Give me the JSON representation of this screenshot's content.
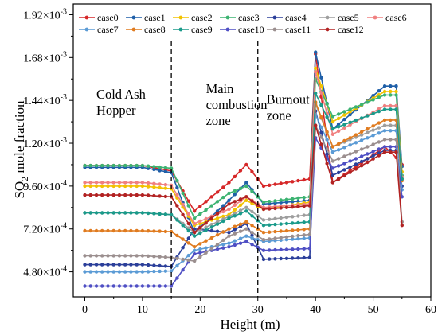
{
  "chart_data": {
    "type": "line",
    "title": "",
    "xlabel": "Height (m)",
    "ylabel": {
      "main": "SO",
      "sub": "2",
      "rest": " mole fraction"
    },
    "xlim": [
      -2,
      60
    ],
    "ylim": [
      0.00034,
      0.00198
    ],
    "xticks": [
      0,
      10,
      20,
      30,
      40,
      50,
      60
    ],
    "yticks": [
      {
        "v": 0.00048,
        "m": "4.80",
        "e": "-4"
      },
      {
        "v": 0.00072,
        "m": "7.20",
        "e": "-4"
      },
      {
        "v": 0.00096,
        "m": "9.60",
        "e": "-4"
      },
      {
        "v": 0.0012,
        "m": "1.20",
        "e": "-3"
      },
      {
        "v": 0.00144,
        "m": "1.44",
        "e": "-3"
      },
      {
        "v": 0.00168,
        "m": "1.68",
        "e": "-3"
      },
      {
        "v": 0.00192,
        "m": "1.92",
        "e": "-3"
      }
    ],
    "grid": false,
    "legend_position": "top",
    "zone_dividers": [
      15,
      30
    ],
    "annotations": [
      {
        "lines": [
          "Cold Ash",
          "Hopper"
        ],
        "x": 2,
        "y": 0.00145
      },
      {
        "lines": [
          "Main",
          "combustion",
          "zone"
        ],
        "x": 21,
        "y": 0.00148
      },
      {
        "lines": [
          "Burnout",
          "zone"
        ],
        "x": 31.5,
        "y": 0.00142
      }
    ],
    "series": [
      {
        "name": "case0",
        "color": "#d62728",
        "values": [
          0.001075,
          0.001075,
          0.001045,
          0.00082,
          0.00098,
          0.00108,
          0.00096,
          0.001,
          0.0017,
          0.00098,
          0.00118,
          0.00112,
          0.00108
        ]
      },
      {
        "name": "case1",
        "color": "#1f5fa8",
        "values": [
          0.001065,
          0.001065,
          0.001035,
          0.0007,
          0.00088,
          0.00098,
          0.00086,
          0.00088,
          0.00171,
          0.00128,
          0.00152,
          0.00152,
          0.00107
        ]
      },
      {
        "name": "case2",
        "color": "#f2c200",
        "values": [
          0.00096,
          0.00096,
          0.000945,
          0.00074,
          0.0008,
          0.00088,
          0.00083,
          0.00087,
          0.00162,
          0.00132,
          0.00149,
          0.00149,
          0.00104
        ]
      },
      {
        "name": "case3",
        "color": "#3cb371",
        "values": [
          0.001075,
          0.001075,
          0.00106,
          0.00078,
          0.00092,
          0.00096,
          0.00087,
          0.0009,
          0.00156,
          0.00135,
          0.00147,
          0.00147,
          0.00102
        ]
      },
      {
        "name": "case4",
        "color": "#2b3f9a",
        "values": [
          0.00052,
          0.00052,
          0.00051,
          0.00072,
          0.0007,
          0.00075,
          0.00055,
          0.00056,
          0.00138,
          0.00102,
          0.00116,
          0.00116,
          0.00096
        ]
      },
      {
        "name": "case5",
        "color": "#9e9e9e",
        "values": [
          0.00081,
          0.00081,
          0.0008,
          0.0007,
          0.00079,
          0.00084,
          0.00077,
          0.0008,
          0.00142,
          0.00118,
          0.0013,
          0.0013,
          0.001
        ]
      },
      {
        "name": "case6",
        "color": "#f08080",
        "values": [
          0.00098,
          0.00098,
          0.000965,
          0.00075,
          0.00083,
          0.0009,
          0.00084,
          0.00086,
          0.0016,
          0.00125,
          0.00141,
          0.00141,
          0.00101
        ]
      },
      {
        "name": "case7",
        "color": "#5b9bd5",
        "values": [
          0.00048,
          0.00048,
          0.000485,
          0.0006,
          0.00064,
          0.00068,
          0.00065,
          0.00067,
          0.00136,
          0.00115,
          0.00127,
          0.00127,
          0.00094
        ]
      },
      {
        "name": "case8",
        "color": "#e07b1f",
        "values": [
          0.00071,
          0.00071,
          0.000705,
          0.00062,
          0.00072,
          0.00076,
          0.0007,
          0.00072,
          0.00143,
          0.00118,
          0.00133,
          0.00133,
          0.00099
        ]
      },
      {
        "name": "case9",
        "color": "#1a9a8a",
        "values": [
          0.00081,
          0.00081,
          0.0008,
          0.00068,
          0.00078,
          0.00082,
          0.00074,
          0.00076,
          0.00148,
          0.00128,
          0.00139,
          0.00139,
          0.001
        ]
      },
      {
        "name": "case10",
        "color": "#4f4fc4",
        "values": [
          0.0004,
          0.0004,
          0.0004,
          0.00058,
          0.00062,
          0.00065,
          0.0006,
          0.00061,
          0.00123,
          0.00106,
          0.00118,
          0.00118,
          0.0009
        ]
      },
      {
        "name": "case11",
        "color": "#9b8f8f",
        "values": [
          0.00057,
          0.00057,
          0.00056,
          0.00054,
          0.00068,
          0.00072,
          0.00066,
          0.00069,
          0.0013,
          0.0011,
          0.00122,
          0.00122,
          0.00076
        ]
      },
      {
        "name": "case12",
        "color": "#b22222",
        "values": [
          0.00091,
          0.00091,
          0.0009,
          0.0007,
          0.00086,
          0.0009,
          0.00083,
          0.00085,
          0.0013,
          0.00098,
          0.00115,
          0.00115,
          0.00074
        ]
      }
    ],
    "x_nodes": [
      0,
      10,
      15,
      19,
      25,
      28,
      31,
      39,
      40,
      43,
      52,
      54,
      55
    ]
  }
}
